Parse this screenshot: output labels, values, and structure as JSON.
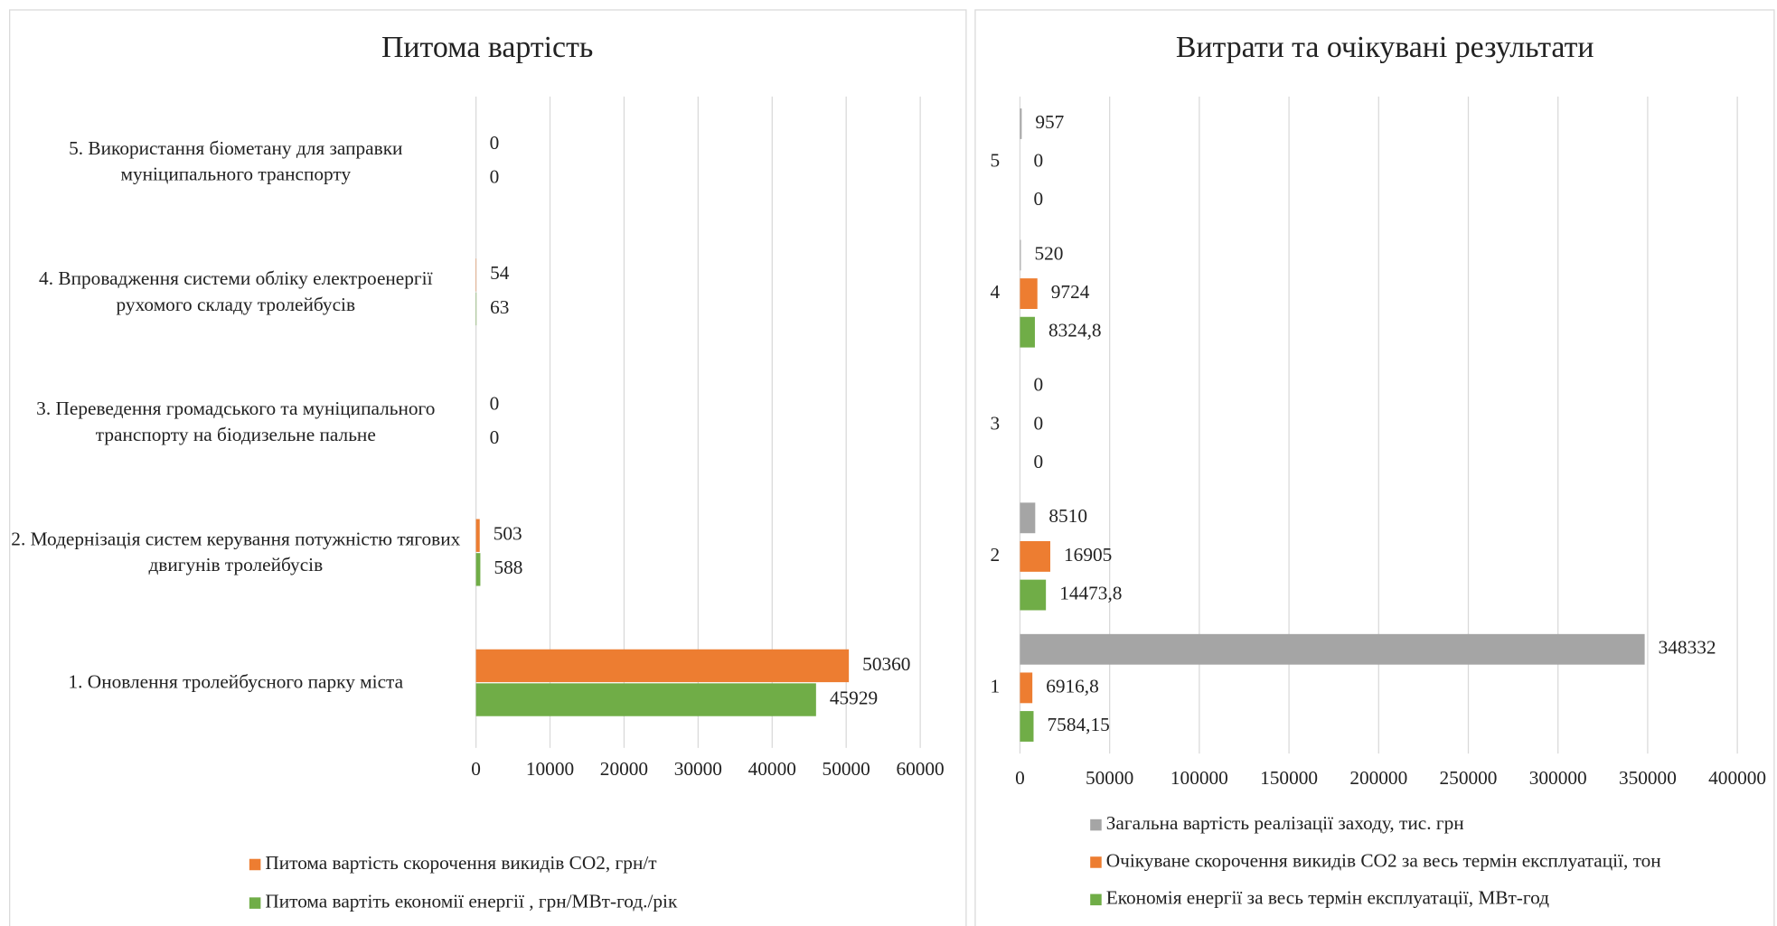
{
  "chart_data": [
    {
      "type": "bar",
      "orientation": "horizontal",
      "title": "Питома вартість",
      "categories": [
        "1. Оновлення тролейбусного парку міста",
        "2. Модернізація систем керування потужністю тягових двигунів тролейбусів",
        "3. Переведення громадського та муніципального транспорту на біодизельне пальне",
        "4. Впровадження системи обліку електроенергії рухомого складу тролейбусів",
        "5. Використання біометану для заправки муніципального транспорту"
      ],
      "series": [
        {
          "name": "Питома вартість скорочення викидів СО2, грн/т",
          "color": "#ed7d31",
          "values": [
            50360,
            503,
            0,
            54,
            0
          ]
        },
        {
          "name": "Питома вартіть економії енергії , грн/МВт-год./рік",
          "color": "#70ad47",
          "values": [
            45929,
            588,
            0,
            63,
            0
          ]
        }
      ],
      "xlim": [
        0,
        60000
      ],
      "xticks": [
        0,
        10000,
        20000,
        30000,
        40000,
        50000,
        60000
      ],
      "grid": true,
      "legend": "bottom"
    },
    {
      "type": "bar",
      "orientation": "horizontal",
      "title": "Витрати та очікувані результати",
      "categories": [
        "1",
        "2",
        "3",
        "4",
        "5"
      ],
      "series": [
        {
          "name": "Загальна вартість реалізації заходу, тис. грн",
          "color": "#a5a5a5",
          "values": [
            348332,
            8510,
            0,
            520,
            957
          ]
        },
        {
          "name": "Очікуване скорочення викидів СО2  за весь  термін експлуатації, тон",
          "color": "#ed7d31",
          "values": [
            6916.8,
            16905,
            0,
            9724,
            0
          ],
          "value_labels": [
            "6916,8",
            "16905",
            "0",
            "9724",
            "0"
          ]
        },
        {
          "name": "Економія енергії за весь термін експлуатації, МВт-год",
          "color": "#70ad47",
          "values": [
            7584.15,
            14473.8,
            0,
            8324.8,
            0
          ],
          "value_labels": [
            "7584,15",
            "14473,8",
            "0",
            "8324,8",
            "0"
          ]
        }
      ],
      "xlim": [
        0,
        400000
      ],
      "xticks": [
        0,
        50000,
        100000,
        150000,
        200000,
        250000,
        300000,
        350000,
        400000
      ],
      "grid": true,
      "legend": "bottom"
    }
  ]
}
